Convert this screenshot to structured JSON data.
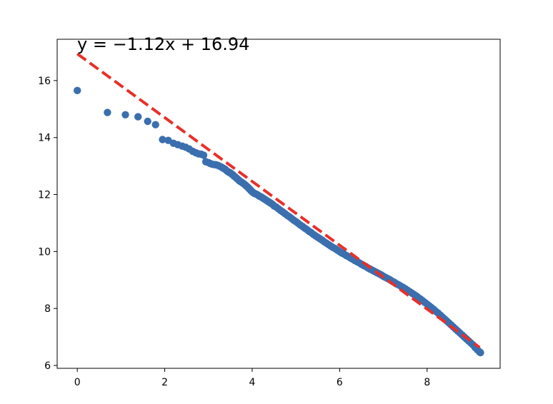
{
  "chart_data": {
    "type": "scatter",
    "title": "",
    "xlabel": "",
    "ylabel": "",
    "xlim": [
      -0.46,
      9.67
    ],
    "ylim": [
      5.9,
      17.45
    ],
    "xticks": [
      0,
      2,
      4,
      6,
      8
    ],
    "yticks": [
      6,
      8,
      10,
      12,
      14,
      16
    ],
    "grid": false,
    "equation_label": "y = −1.12x + 16.94",
    "fit_line": {
      "slope": -1.12,
      "intercept": 16.94,
      "x_range": [
        0,
        9.2
      ],
      "color": "#e8302a",
      "style": "dashed"
    },
    "scatter_color": "#3b6fae",
    "series": [
      {
        "points": [
          [
            0.0,
            15.65
          ],
          [
            0.69,
            14.88
          ],
          [
            1.1,
            14.8
          ],
          [
            1.39,
            14.73
          ],
          [
            1.61,
            14.57
          ],
          [
            1.79,
            14.45
          ],
          [
            1.95,
            13.93
          ],
          [
            2.08,
            13.9
          ],
          [
            2.2,
            13.8
          ],
          [
            2.3,
            13.75
          ],
          [
            2.4,
            13.7
          ],
          [
            2.48,
            13.66
          ],
          [
            2.56,
            13.6
          ],
          [
            2.64,
            13.52
          ],
          [
            2.71,
            13.47
          ],
          [
            2.77,
            13.43
          ],
          [
            2.83,
            13.42
          ],
          [
            2.89,
            13.38
          ],
          [
            2.94,
            13.15
          ],
          [
            3.0,
            13.12
          ],
          [
            3.04,
            13.09
          ],
          [
            3.09,
            13.06
          ],
          [
            3.14,
            13.05
          ],
          [
            3.18,
            13.04
          ],
          [
            3.22,
            13.02
          ],
          [
            3.26,
            12.99
          ],
          [
            3.3,
            12.96
          ],
          [
            3.33,
            12.93
          ],
          [
            3.37,
            12.9
          ],
          [
            3.4,
            12.86
          ],
          [
            3.43,
            12.82
          ],
          [
            3.47,
            12.78
          ],
          [
            3.5,
            12.76
          ],
          [
            3.53,
            12.72
          ],
          [
            3.56,
            12.69
          ],
          [
            3.58,
            12.65
          ],
          [
            3.61,
            12.62
          ],
          [
            3.64,
            12.58
          ],
          [
            3.66,
            12.55
          ],
          [
            3.69,
            12.51
          ],
          [
            3.71,
            12.48
          ],
          [
            3.74,
            12.45
          ],
          [
            3.76,
            12.43
          ],
          [
            3.78,
            12.41
          ],
          [
            3.81,
            12.38
          ],
          [
            3.83,
            12.35
          ],
          [
            3.85,
            12.32
          ],
          [
            3.87,
            12.3
          ],
          [
            3.89,
            12.27
          ],
          [
            3.91,
            12.24
          ],
          [
            3.93,
            12.2
          ],
          [
            3.95,
            12.18
          ],
          [
            3.97,
            12.14
          ],
          [
            3.99,
            12.11
          ],
          [
            4.01,
            12.08
          ],
          [
            4.03,
            12.06
          ],
          [
            4.05,
            12.04
          ],
          [
            4.08,
            12.02
          ],
          [
            4.11,
            12.0
          ],
          [
            4.14,
            11.97
          ],
          [
            4.17,
            11.94
          ],
          [
            4.2,
            11.92
          ],
          [
            4.23,
            11.89
          ],
          [
            4.26,
            11.86
          ],
          [
            4.29,
            11.83
          ],
          [
            4.32,
            11.8
          ],
          [
            4.35,
            11.77
          ],
          [
            4.38,
            11.74
          ],
          [
            4.41,
            11.71
          ],
          [
            4.44,
            11.68
          ],
          [
            4.47,
            11.65
          ],
          [
            4.5,
            11.6
          ],
          [
            4.55,
            11.56
          ],
          [
            4.6,
            11.5
          ],
          [
            4.65,
            11.44
          ],
          [
            4.7,
            11.39
          ],
          [
            4.75,
            11.33
          ],
          [
            4.8,
            11.27
          ],
          [
            4.85,
            11.22
          ],
          [
            4.9,
            11.16
          ],
          [
            4.95,
            11.1
          ],
          [
            5.0,
            11.05
          ],
          [
            5.05,
            10.99
          ],
          [
            5.1,
            10.93
          ],
          [
            5.15,
            10.88
          ],
          [
            5.2,
            10.82
          ],
          [
            5.25,
            10.77
          ],
          [
            5.3,
            10.71
          ],
          [
            5.35,
            10.66
          ],
          [
            5.4,
            10.6
          ],
          [
            5.45,
            10.55
          ],
          [
            5.5,
            10.5
          ],
          [
            5.55,
            10.45
          ],
          [
            5.6,
            10.4
          ],
          [
            5.65,
            10.34
          ],
          [
            5.7,
            10.29
          ],
          [
            5.75,
            10.24
          ],
          [
            5.8,
            10.19
          ],
          [
            5.85,
            10.14
          ],
          [
            5.9,
            10.1
          ],
          [
            5.95,
            10.05
          ],
          [
            6.0,
            10.0
          ],
          [
            6.05,
            9.95
          ],
          [
            6.1,
            9.91
          ],
          [
            6.15,
            9.86
          ],
          [
            6.2,
            9.82
          ],
          [
            6.25,
            9.77
          ],
          [
            6.3,
            9.73
          ],
          [
            6.35,
            9.68
          ],
          [
            6.4,
            9.64
          ],
          [
            6.45,
            9.6
          ],
          [
            6.5,
            9.55
          ],
          [
            6.55,
            9.51
          ],
          [
            6.6,
            9.47
          ],
          [
            6.65,
            9.42
          ],
          [
            6.7,
            9.38
          ],
          [
            6.75,
            9.34
          ],
          [
            6.8,
            9.3
          ],
          [
            6.85,
            9.26
          ],
          [
            6.9,
            9.22
          ],
          [
            6.95,
            9.18
          ],
          [
            7.0,
            9.13
          ],
          [
            7.05,
            9.09
          ],
          [
            7.1,
            9.05
          ],
          [
            7.15,
            9.01
          ],
          [
            7.2,
            8.96
          ],
          [
            7.25,
            8.92
          ],
          [
            7.3,
            8.87
          ],
          [
            7.35,
            8.83
          ],
          [
            7.4,
            8.78
          ],
          [
            7.45,
            8.74
          ],
          [
            7.5,
            8.69
          ],
          [
            7.55,
            8.64
          ],
          [
            7.6,
            8.59
          ],
          [
            7.65,
            8.54
          ],
          [
            7.7,
            8.49
          ],
          [
            7.75,
            8.44
          ],
          [
            7.8,
            8.38
          ],
          [
            7.85,
            8.33
          ],
          [
            7.9,
            8.27
          ],
          [
            7.95,
            8.21
          ],
          [
            8.0,
            8.15
          ],
          [
            8.05,
            8.09
          ],
          [
            8.1,
            8.03
          ],
          [
            8.15,
            7.97
          ],
          [
            8.2,
            7.9
          ],
          [
            8.25,
            7.84
          ],
          [
            8.3,
            7.77
          ],
          [
            8.35,
            7.7
          ],
          [
            8.4,
            7.63
          ],
          [
            8.45,
            7.56
          ],
          [
            8.5,
            7.49
          ],
          [
            8.55,
            7.42
          ],
          [
            8.6,
            7.35
          ],
          [
            8.65,
            7.28
          ],
          [
            8.7,
            7.21
          ],
          [
            8.75,
            7.14
          ],
          [
            8.8,
            7.07
          ],
          [
            8.85,
            7.0
          ],
          [
            8.9,
            6.93
          ],
          [
            8.95,
            6.86
          ],
          [
            9.0,
            6.79
          ],
          [
            9.05,
            6.72
          ],
          [
            9.1,
            6.63
          ],
          [
            9.15,
            6.55
          ],
          [
            9.2,
            6.48
          ],
          [
            9.22,
            6.45
          ]
        ]
      }
    ]
  }
}
